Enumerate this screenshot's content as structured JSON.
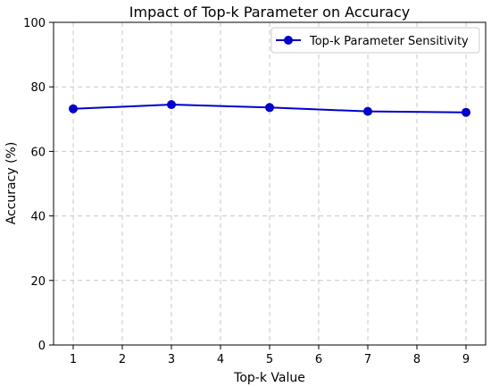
{
  "chart_data": {
    "type": "line",
    "title": "Impact of Top-k Parameter on Accuracy",
    "xlabel": "Top-k Value",
    "ylabel": "Accuracy (%)",
    "xlim": [
      0.6,
      9.4
    ],
    "ylim": [
      0,
      100
    ],
    "xticks": [
      1,
      2,
      3,
      4,
      5,
      6,
      7,
      8,
      9
    ],
    "yticks": [
      0,
      20,
      40,
      60,
      80,
      100
    ],
    "grid": true,
    "legend_position": "top-right",
    "series": [
      {
        "name": "Top-k Parameter Sensitivity",
        "color": "#0000cc",
        "marker": "circle",
        "x": [
          1,
          3,
          5,
          7,
          9
        ],
        "y": [
          73.2,
          74.5,
          73.6,
          72.4,
          72.1
        ]
      }
    ]
  }
}
